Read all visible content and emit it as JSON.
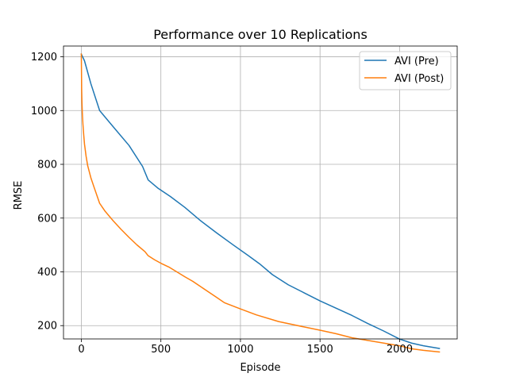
{
  "chart_data": {
    "type": "line",
    "title": "Performance over 10 Replications",
    "xlabel": "Episode",
    "ylabel": "RMSE",
    "xlim": [
      -112,
      2362
    ],
    "ylim": [
      150.48,
      1240
    ],
    "xticks": [
      0,
      500,
      1000,
      1500,
      2000
    ],
    "yticks": [
      200,
      400,
      600,
      800,
      1000,
      1200
    ],
    "grid": true,
    "legend_position": "upper right",
    "series": [
      {
        "name": "AVI (Pre)",
        "color": "#1f77b4",
        "x": [
          0,
          20,
          60,
          115,
          200,
          300,
          385,
          420,
          480,
          560,
          650,
          750,
          850,
          950,
          1050,
          1120,
          1200,
          1300,
          1400,
          1500,
          1600,
          1700,
          1800,
          1900,
          2000,
          2075,
          2150,
          2250
        ],
        "y": [
          1210,
          1185,
          1100,
          1000,
          940,
          870,
          792,
          742,
          712,
          680,
          640,
          590,
          545,
          502,
          460,
          430,
          390,
          352,
          322,
          292,
          265,
          238,
          208,
          180,
          150,
          135,
          125,
          115
        ]
      },
      {
        "name": "AVI (Post)",
        "color": "#ff7f0e",
        "x": [
          0,
          1,
          2,
          4,
          6,
          10,
          15,
          20,
          30,
          40,
          60,
          80,
          115,
          150,
          200,
          250,
          300,
          350,
          400,
          420,
          460,
          500,
          550,
          600,
          650,
          700,
          750,
          800,
          850,
          900,
          1000,
          1100,
          1240,
          1400,
          1500,
          1600,
          1700,
          1800,
          1900,
          2000,
          2075,
          2150,
          2250
        ],
        "y": [
          1210,
          1150,
          1080,
          1030,
          995,
          950,
          910,
          875,
          830,
          795,
          750,
          715,
          655,
          625,
          590,
          558,
          528,
          500,
          475,
          460,
          445,
          432,
          418,
          400,
          382,
          365,
          345,
          325,
          305,
          285,
          262,
          240,
          215,
          195,
          183,
          170,
          155,
          145,
          135,
          125,
          114,
          108,
          102
        ]
      }
    ]
  }
}
